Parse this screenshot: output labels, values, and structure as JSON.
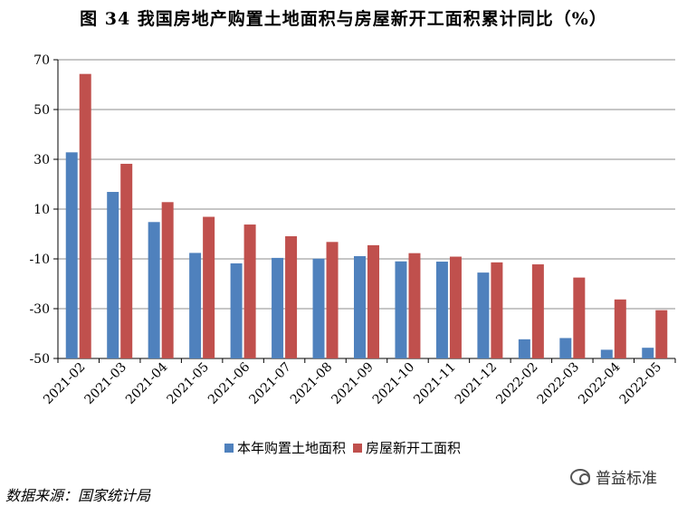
{
  "title": "图 34  我国房地产购置土地面积与房屋新开工面积累计同比（%）",
  "source": "数据来源：国家统计局",
  "watermark": "普益标准",
  "chart_data": {
    "type": "bar",
    "categories": [
      "2021-02",
      "2021-03",
      "2021-04",
      "2021-05",
      "2021-06",
      "2021-07",
      "2021-08",
      "2021-09",
      "2021-10",
      "2021-11",
      "2021-12",
      "2022-02",
      "2022-03",
      "2022-04",
      "2022-05"
    ],
    "series": [
      {
        "name": "本年购置土地面积",
        "color": "#4F81BD",
        "values": [
          32.8,
          16.9,
          4.8,
          -7.6,
          -11.8,
          -9.6,
          -9.9,
          -8.9,
          -11.0,
          -11.1,
          -15.5,
          -42.3,
          -41.8,
          -46.5,
          -45.7
        ]
      },
      {
        "name": "房屋新开工面积",
        "color": "#C0504D",
        "values": [
          64.3,
          28.2,
          12.8,
          6.9,
          3.8,
          -0.9,
          -3.2,
          -4.5,
          -7.7,
          -9.1,
          -11.4,
          -12.2,
          -17.5,
          -26.3,
          -30.6
        ]
      }
    ],
    "ylim": [
      -50,
      70
    ],
    "yticks": [
      70,
      50,
      30,
      10,
      -10,
      -30,
      -50
    ],
    "grid": true,
    "legend_position": "bottom"
  }
}
